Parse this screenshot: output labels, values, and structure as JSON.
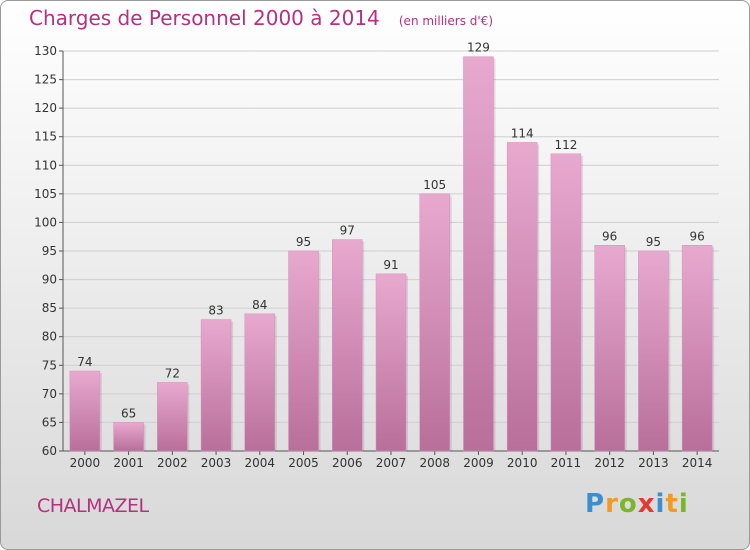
{
  "header": {
    "title": "Charges de Personnel 2000 à 2014",
    "unit": "(en milliers d'€)"
  },
  "footer": {
    "commune": "CHALMAZEL",
    "logo_letters": [
      "P",
      "r",
      "o",
      "x",
      "i",
      "t",
      "i"
    ]
  },
  "colors": {
    "title": "#b5317f",
    "bar_top": "#e8a9cf",
    "bar_bottom": "#b86f9a",
    "grid": "#cfcfcf"
  },
  "chart_data": {
    "type": "bar",
    "title": "Charges de Personnel 2000 à 2014",
    "subtitle": "(en milliers d'€)",
    "xlabel": "",
    "ylabel": "",
    "categories": [
      "2000",
      "2001",
      "2002",
      "2003",
      "2004",
      "2005",
      "2006",
      "2007",
      "2008",
      "2009",
      "2010",
      "2011",
      "2012",
      "2013",
      "2014"
    ],
    "values": [
      74,
      65,
      72,
      83,
      84,
      95,
      97,
      91,
      105,
      129,
      114,
      112,
      96,
      95,
      96
    ],
    "ylim": [
      60,
      130
    ],
    "yticks": [
      60,
      65,
      70,
      75,
      80,
      85,
      90,
      95,
      100,
      105,
      110,
      115,
      120,
      125,
      130
    ],
    "grid": true,
    "data_labels": true
  }
}
